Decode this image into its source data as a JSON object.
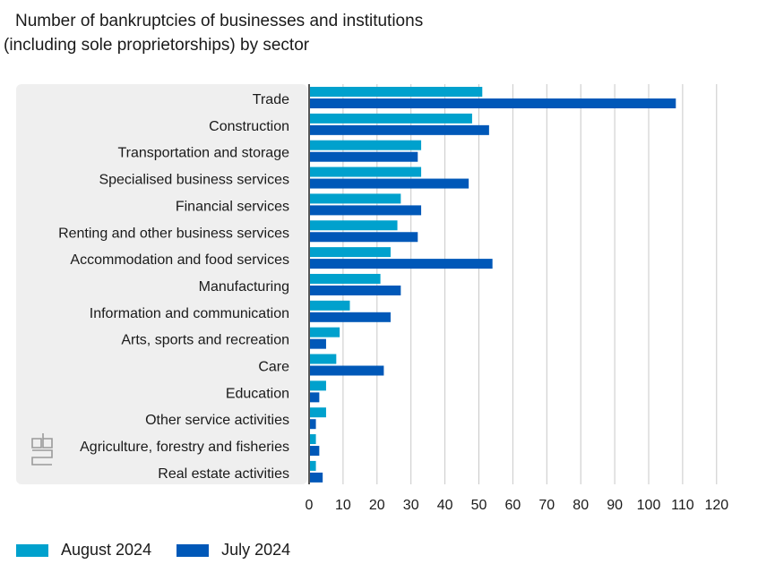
{
  "title": {
    "line1": "Number of bankruptcies of businesses and institutions",
    "line2": "(including sole proprietorships) by sector"
  },
  "colors": {
    "august": "#00a1cd",
    "july": "#0058b8",
    "panel": "#efefef",
    "grid": "#c8c8c8",
    "axis": "#555555",
    "logo": "#9a9a9a"
  },
  "icons": {
    "logo": "cbs-logo-icon"
  },
  "chart_data": {
    "type": "bar",
    "orientation": "horizontal",
    "title": "Number of bankruptcies of businesses and institutions (including sole proprietorships) by sector",
    "categories": [
      "Trade",
      "Construction",
      "Transportation and storage",
      "Specialised business services",
      "Financial services",
      "Renting and other business services",
      "Accommodation and food services",
      "Manufacturing",
      "Information and communication",
      "Arts, sports and recreation",
      "Care",
      "Education",
      "Other service activities",
      "Agriculture, forestry and fisheries",
      "Real estate activities"
    ],
    "series": [
      {
        "name": "August 2024",
        "values": [
          51,
          48,
          33,
          33,
          27,
          26,
          24,
          21,
          12,
          9,
          8,
          5,
          5,
          2,
          2
        ]
      },
      {
        "name": "July 2024",
        "values": [
          108,
          53,
          32,
          47,
          33,
          32,
          54,
          27,
          24,
          5,
          22,
          3,
          2,
          3,
          4
        ]
      }
    ],
    "xlim": [
      0,
      120
    ],
    "xticks": [
      "0",
      "10",
      "20",
      "30",
      "40",
      "50",
      "60",
      "70",
      "80",
      "90",
      "100",
      "110",
      "120"
    ],
    "grid": true,
    "legend_position": "bottom-left"
  }
}
